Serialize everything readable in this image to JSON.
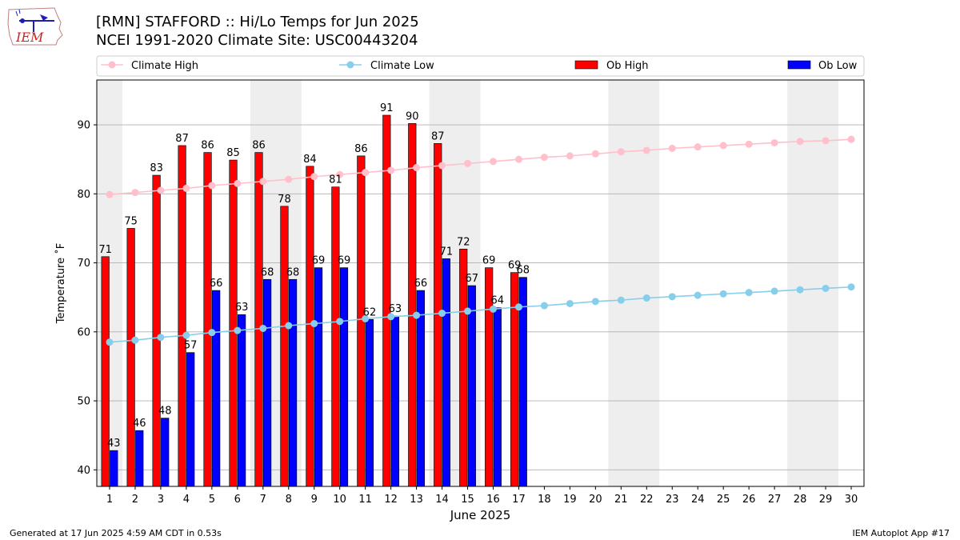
{
  "header": {
    "title_line1": "[RMN] STAFFORD :: Hi/Lo Temps for Jun 2025",
    "title_line2": "NCEI 1991-2020 Climate Site: USC00443204"
  },
  "logo": {
    "text": "IEM"
  },
  "footer": {
    "generated": "Generated at 17 Jun 2025 4:59 AM CDT in 0.53s",
    "app": "IEM Autoplot App #17"
  },
  "colors": {
    "ob_high": "#ff0000",
    "ob_low": "#0000ff",
    "climate_high": "#ffc0cb",
    "climate_low": "#87ceeb",
    "weekend_shade": "#eeeeee",
    "grid": "#b0b0b0"
  },
  "chart_data": {
    "type": "bar",
    "xlabel": "June 2025",
    "ylabel": "Temperature ˚F",
    "xlim": [
      0.5,
      30.5
    ],
    "ylim": [
      37.6,
      96.5
    ],
    "yticks": [
      40,
      50,
      60,
      70,
      80,
      90
    ],
    "x": [
      1,
      2,
      3,
      4,
      5,
      6,
      7,
      8,
      9,
      10,
      11,
      12,
      13,
      14,
      15,
      16,
      17,
      18,
      19,
      20,
      21,
      22,
      23,
      24,
      25,
      26,
      27,
      28,
      29,
      30
    ],
    "grid": "horizontal",
    "legend_position": "top",
    "legend": [
      "Climate High",
      "Climate Low",
      "Ob High",
      "Ob Low"
    ],
    "weekend_bands": [
      [
        0.5,
        1.5
      ],
      [
        6.5,
        8.5
      ],
      [
        13.5,
        15.5
      ],
      [
        20.5,
        22.5
      ],
      [
        27.5,
        29.5
      ]
    ],
    "ob_high": [
      71,
      75,
      83,
      87,
      86,
      85,
      86,
      78,
      84,
      81,
      86,
      91,
      90,
      87,
      72,
      69,
      69
    ],
    "ob_high_values": [
      70.9,
      75.0,
      82.7,
      87.0,
      86.0,
      84.9,
      86.0,
      78.2,
      84.0,
      81.0,
      85.5,
      91.4,
      90.2,
      87.3,
      72.0,
      69.3,
      68.6
    ],
    "ob_high_labels": [
      "71",
      "75",
      "83",
      "87",
      "86",
      "85",
      "86",
      "78",
      "84",
      "81",
      "86",
      "91",
      "90",
      "87",
      "72",
      "69",
      "69"
    ],
    "ob_low": [
      43,
      46,
      48,
      57,
      66,
      63,
      68,
      68,
      69,
      69,
      62,
      63,
      66,
      71,
      67,
      64,
      68
    ],
    "ob_low_values": [
      42.8,
      45.7,
      47.5,
      57.0,
      66.0,
      62.5,
      67.6,
      67.6,
      69.3,
      69.3,
      61.8,
      62.3,
      66.0,
      70.6,
      66.7,
      63.5,
      67.9
    ],
    "ob_low_labels": [
      "43",
      "46",
      "48",
      "57",
      "66",
      "63",
      "68",
      "68",
      "69",
      "69",
      "62",
      "63",
      "66",
      "71",
      "67",
      "64",
      "68"
    ],
    "climate_high": [
      79.9,
      80.2,
      80.5,
      80.8,
      81.2,
      81.5,
      81.8,
      82.1,
      82.5,
      82.8,
      83.1,
      83.4,
      83.8,
      84.1,
      84.4,
      84.7,
      85.0,
      85.3,
      85.5,
      85.8,
      86.1,
      86.3,
      86.6,
      86.8,
      87.0,
      87.2,
      87.4,
      87.6,
      87.7,
      87.9
    ],
    "climate_low": [
      58.5,
      58.8,
      59.2,
      59.5,
      59.9,
      60.2,
      60.5,
      60.9,
      61.2,
      61.5,
      61.9,
      62.2,
      62.4,
      62.7,
      63.0,
      63.3,
      63.6,
      63.8,
      64.1,
      64.4,
      64.6,
      64.9,
      65.1,
      65.3,
      65.5,
      65.7,
      65.9,
      66.1,
      66.3,
      66.5
    ]
  }
}
